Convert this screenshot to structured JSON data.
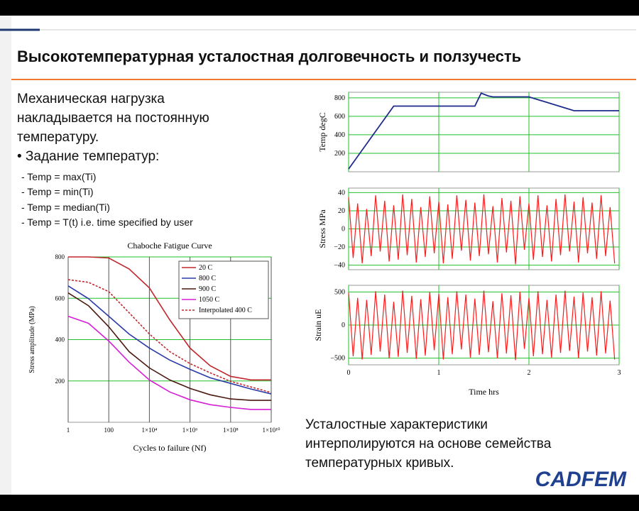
{
  "title": "Высокотемпературная усталостная долговечность и ползучесть",
  "left_text": [
    "Механическая нагрузка",
    "накладывается на постоянную",
    "температуру.",
    "• Задание температур:",
    "- Temp = max(Ti)",
    "- Temp = min(Ti)",
    "- Temp = median(Ti)",
    "- Temp = T(t) i.e. time specified by user"
  ],
  "bottom_text": [
    "Усталостные характеристики",
    "интерполируются на основе семейства",
    "температурных кривых."
  ],
  "logo": "CADFEM",
  "chart_data": [
    {
      "type": "line",
      "title": "Chaboche Fatigue Curve",
      "x_label": "Cycles to failure (Nf)",
      "y_label": "Stress amplitude (MPa)",
      "x": [
        1,
        10,
        100,
        1000,
        10000,
        100000,
        1000000,
        10000000,
        100000000,
        1000000000,
        10000000000
      ],
      "xlog": true,
      "xlim": [
        1,
        10000000000
      ],
      "xticks": [
        1,
        100,
        {
          "value": 10000,
          "label": "1×10⁴"
        },
        {
          "value": 1000000,
          "label": "1×10⁶"
        },
        {
          "value": 100000000,
          "label": "1×10⁸"
        },
        {
          "value": 10000000000,
          "label": "1×10¹⁰"
        }
      ],
      "ylim": [
        0,
        800
      ],
      "yticks": [
        200,
        400,
        600,
        800
      ],
      "grid": true,
      "grid_color": "#22c02a",
      "xgrid_color": "#555555",
      "legend": "upper right",
      "xtick_labels": true,
      "series": [
        {
          "name": "20 C",
          "color": "#c0282d",
          "values": [
            800,
            800,
            795,
            742,
            650,
            496,
            359,
            273,
            222,
            205,
            205
          ]
        },
        {
          "name": "800 C",
          "color": "#2a3aa8",
          "values": [
            660,
            598,
            513,
            427,
            359,
            301,
            256,
            215,
            188,
            161,
            137
          ]
        },
        {
          "name": "900 C",
          "color": "#4a1a10",
          "values": [
            626,
            564,
            462,
            342,
            263,
            205,
            164,
            133,
            113,
            106,
            106
          ]
        },
        {
          "name": "1050 C",
          "color": "#d41fd4",
          "values": [
            513,
            479,
            393,
            291,
            205,
            147,
            109,
            85,
            72,
            62,
            62
          ]
        },
        {
          "name": "Interpolated 400 C",
          "color": "#c0282d",
          "style": "dashed",
          "values": [
            690,
            677,
            632,
            530,
            427,
            342,
            284,
            239,
            198,
            171,
            144
          ]
        }
      ]
    },
    {
      "type": "line",
      "y_label": "Temp degC",
      "x": [
        0,
        0.5,
        1.4,
        1.47,
        1.55,
        1.6,
        2,
        2.5,
        3
      ],
      "xlim": [
        0,
        3
      ],
      "xticks": [
        0,
        1,
        2,
        3
      ],
      "xtick_labels": false,
      "ylim": [
        0,
        860
      ],
      "yticks": [
        200,
        400,
        600,
        800
      ],
      "grid": true,
      "grid_color": "#22c02a",
      "xgrid_color": "#22c02a",
      "series": [
        {
          "color": "#1c2a8c",
          "values": [
            30,
            710,
            710,
            850,
            820,
            810,
            810,
            660,
            660
          ]
        }
      ]
    },
    {
      "type": "line",
      "y_label": "Stress MPa",
      "x": [
        0,
        0.05,
        0.1,
        0.15,
        0.2,
        0.25,
        0.3,
        0.35,
        0.4,
        0.45,
        0.5,
        0.55,
        0.6,
        0.65,
        0.7,
        0.75,
        0.8,
        0.85,
        0.9,
        0.95,
        1,
        1.05,
        1.1,
        1.15,
        1.2,
        1.25,
        1.3,
        1.35,
        1.4,
        1.45,
        1.5,
        1.55,
        1.6,
        1.65,
        1.7,
        1.75,
        1.8,
        1.85,
        1.9,
        1.95,
        2,
        2.05,
        2.1,
        2.15,
        2.2,
        2.25,
        2.3,
        2.35,
        2.4,
        2.45,
        2.5,
        2.55,
        2.6,
        2.65,
        2.7,
        2.75,
        2.8,
        2.85,
        2.9,
        2.95
      ],
      "xlim": [
        0,
        3
      ],
      "xticks": [
        0,
        1,
        2,
        3
      ],
      "xtick_labels": false,
      "ylim": [
        -45,
        45
      ],
      "yticks": [
        {
          "value": -40,
          "label": "−40"
        },
        {
          "value": -20,
          "label": "−20"
        },
        0,
        20,
        40
      ],
      "grid": true,
      "grid_color": "#22c02a",
      "xgrid_color": "#22c02a",
      "series": [
        {
          "color": "#ff1a1a",
          "values": [
            35,
            -32,
            28,
            -38,
            22,
            -30,
            37,
            -25,
            31,
            -36,
            26,
            -34,
            38,
            -29,
            33,
            -37,
            24,
            -31,
            36,
            -27,
            30,
            -38,
            27,
            -33,
            37,
            -24,
            32,
            -35,
            29,
            -30,
            38,
            -28,
            25,
            -37,
            34,
            -26,
            31,
            -39,
            36,
            -23,
            28,
            -34,
            37,
            -31,
            26,
            -36,
            33,
            -29,
            38,
            -25,
            30,
            -37,
            35,
            -27,
            29,
            -33,
            37,
            -30,
            24,
            -38
          ]
        }
      ]
    },
    {
      "type": "line",
      "y_label": "Strain uE",
      "x_label": "Time hrs",
      "x": [
        0,
        0.05,
        0.1,
        0.15,
        0.2,
        0.25,
        0.3,
        0.35,
        0.4,
        0.45,
        0.5,
        0.55,
        0.6,
        0.65,
        0.7,
        0.75,
        0.8,
        0.85,
        0.9,
        0.95,
        1,
        1.05,
        1.1,
        1.15,
        1.2,
        1.25,
        1.3,
        1.35,
        1.4,
        1.45,
        1.5,
        1.55,
        1.6,
        1.65,
        1.7,
        1.75,
        1.8,
        1.85,
        1.9,
        1.95,
        2,
        2.05,
        2.1,
        2.15,
        2.2,
        2.25,
        2.3,
        2.35,
        2.4,
        2.45,
        2.5,
        2.55,
        2.6,
        2.65,
        2.7,
        2.75,
        2.8,
        2.85,
        2.9,
        2.95
      ],
      "xlim": [
        0,
        3
      ],
      "xticks": [
        0,
        1,
        2,
        3
      ],
      "xtick_labels": true,
      "ylim": [
        -600,
        600
      ],
      "yticks": [
        {
          "value": -500,
          "label": "−500"
        },
        0,
        500
      ],
      "grid": true,
      "grid_color": "#22c02a",
      "xgrid_color": "#22c02a",
      "series": [
        {
          "color": "#ff1a1a",
          "values": [
            490,
            -470,
            410,
            -520,
            380,
            -450,
            510,
            -400,
            460,
            -500,
            350,
            -480,
            520,
            -420,
            440,
            -510,
            390,
            -460,
            500,
            -380,
            470,
            -520,
            420,
            -440,
            510,
            -370,
            460,
            -490,
            400,
            -450,
            520,
            -410,
            360,
            -500,
            480,
            -430,
            450,
            -530,
            500,
            -360,
            410,
            -470,
            510,
            -440,
            380,
            -490,
            460,
            -420,
            520,
            -390,
            430,
            -500,
            490,
            -400,
            420,
            -460,
            510,
            -430,
            370,
            -520
          ]
        }
      ]
    }
  ]
}
